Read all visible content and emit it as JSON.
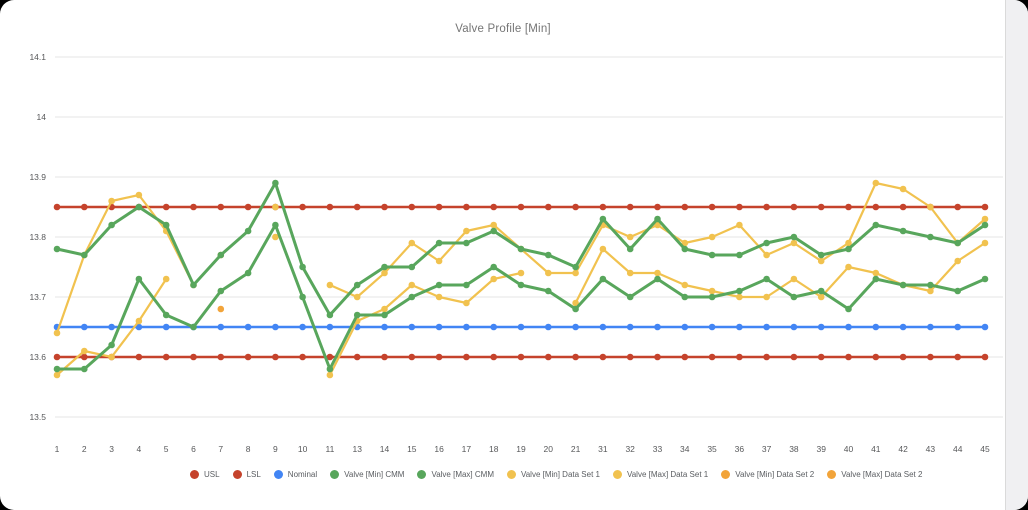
{
  "window": {
    "background": "#ffffff",
    "page_background": "#000000"
  },
  "chart_data": {
    "type": "line",
    "title": "Valve Profile [Min]",
    "xlabel": "",
    "ylabel": "",
    "ylim": [
      13.5,
      14.1
    ],
    "grid": true,
    "legend_position": "bottom",
    "grid_color": "#e6e6e6",
    "tick_color": "#57585a",
    "y_tick_labels": [
      "14.1",
      "14",
      "13.9",
      "13.8",
      "13.7",
      "13.6",
      "13.5"
    ],
    "y_tick_values": [
      14.1,
      14.0,
      13.9,
      13.8,
      13.7,
      13.6,
      13.5
    ],
    "categories": [
      "1",
      "2",
      "3",
      "4",
      "5",
      "6",
      "7",
      "8",
      "9",
      "10",
      "11",
      "13",
      "14",
      "15",
      "16",
      "17",
      "18",
      "19",
      "20",
      "21",
      "31",
      "32",
      "33",
      "34",
      "35",
      "36",
      "37",
      "38",
      "39",
      "40",
      "41",
      "42",
      "43",
      "44",
      "45"
    ],
    "series": [
      {
        "name": "USL",
        "color": "#c5432c",
        "type": "constant",
        "value": 13.85
      },
      {
        "name": "LSL",
        "color": "#c5432c",
        "type": "constant",
        "value": 13.6
      },
      {
        "name": "Nominal",
        "color": "#4285f4",
        "type": "constant",
        "value": 13.65
      },
      {
        "name": "Valve [Min] CMM",
        "color": "#58a65c",
        "type": "line",
        "values": [
          13.58,
          13.58,
          13.62,
          13.73,
          13.67,
          13.65,
          13.71,
          13.74,
          13.82,
          13.7,
          13.58,
          13.67,
          13.67,
          13.7,
          13.72,
          13.72,
          13.75,
          13.72,
          13.71,
          13.68,
          13.73,
          13.7,
          13.73,
          13.7,
          13.7,
          13.71,
          13.73,
          13.7,
          13.71,
          13.68,
          13.73,
          13.72,
          13.72,
          13.71,
          13.73
        ]
      },
      {
        "name": "Valve [Max] CMM",
        "color": "#58a65c",
        "type": "line",
        "values": [
          13.78,
          13.77,
          13.82,
          13.85,
          13.82,
          13.72,
          13.77,
          13.81,
          13.89,
          13.75,
          13.67,
          13.72,
          13.75,
          13.75,
          13.79,
          13.79,
          13.81,
          13.78,
          13.77,
          13.75,
          13.83,
          13.78,
          13.83,
          13.78,
          13.77,
          13.77,
          13.79,
          13.8,
          13.77,
          13.78,
          13.82,
          13.81,
          13.8,
          13.79,
          13.82
        ]
      },
      {
        "name": "Valve [Min] Data Set 1",
        "color": "#f1c24f",
        "type": "line",
        "values": [
          13.57,
          13.61,
          13.6,
          13.66,
          13.73,
          null,
          null,
          null,
          13.8,
          null,
          13.57,
          13.66,
          13.68,
          13.72,
          13.7,
          13.69,
          13.73,
          13.74,
          null,
          13.69,
          13.78,
          13.74,
          13.74,
          13.72,
          13.71,
          13.7,
          13.7,
          13.73,
          13.7,
          13.75,
          13.74,
          13.72,
          13.71,
          13.76,
          13.79
        ]
      },
      {
        "name": "Valve [Max] Data Set 1",
        "color": "#f1c24f",
        "type": "line",
        "values": [
          13.64,
          13.77,
          13.86,
          13.87,
          13.81,
          13.72,
          null,
          null,
          13.85,
          null,
          13.72,
          13.7,
          13.74,
          13.79,
          13.76,
          13.81,
          13.82,
          13.78,
          13.74,
          13.74,
          13.82,
          13.8,
          13.82,
          13.79,
          13.8,
          13.82,
          13.77,
          13.79,
          13.76,
          13.79,
          13.89,
          13.88,
          13.85,
          13.79,
          13.83
        ]
      },
      {
        "name": "Valve [Min] Data Set 2",
        "color": "#f2a43a",
        "type": "line",
        "values": [
          null,
          null,
          null,
          null,
          null,
          null,
          13.68,
          null,
          null,
          null,
          null,
          null,
          null,
          null,
          null,
          null,
          null,
          null,
          null,
          null,
          null,
          null,
          null,
          null,
          null,
          null,
          null,
          null,
          null,
          null,
          null,
          null,
          null,
          null,
          null
        ]
      },
      {
        "name": "Valve [Max] Data Set 2",
        "color": "#f2a43a",
        "type": "line",
        "values": [
          null,
          null,
          null,
          null,
          null,
          null,
          13.77,
          null,
          null,
          null,
          null,
          null,
          null,
          null,
          null,
          null,
          null,
          null,
          null,
          null,
          null,
          null,
          null,
          null,
          null,
          null,
          null,
          null,
          null,
          null,
          null,
          null,
          null,
          null,
          null
        ]
      }
    ]
  }
}
